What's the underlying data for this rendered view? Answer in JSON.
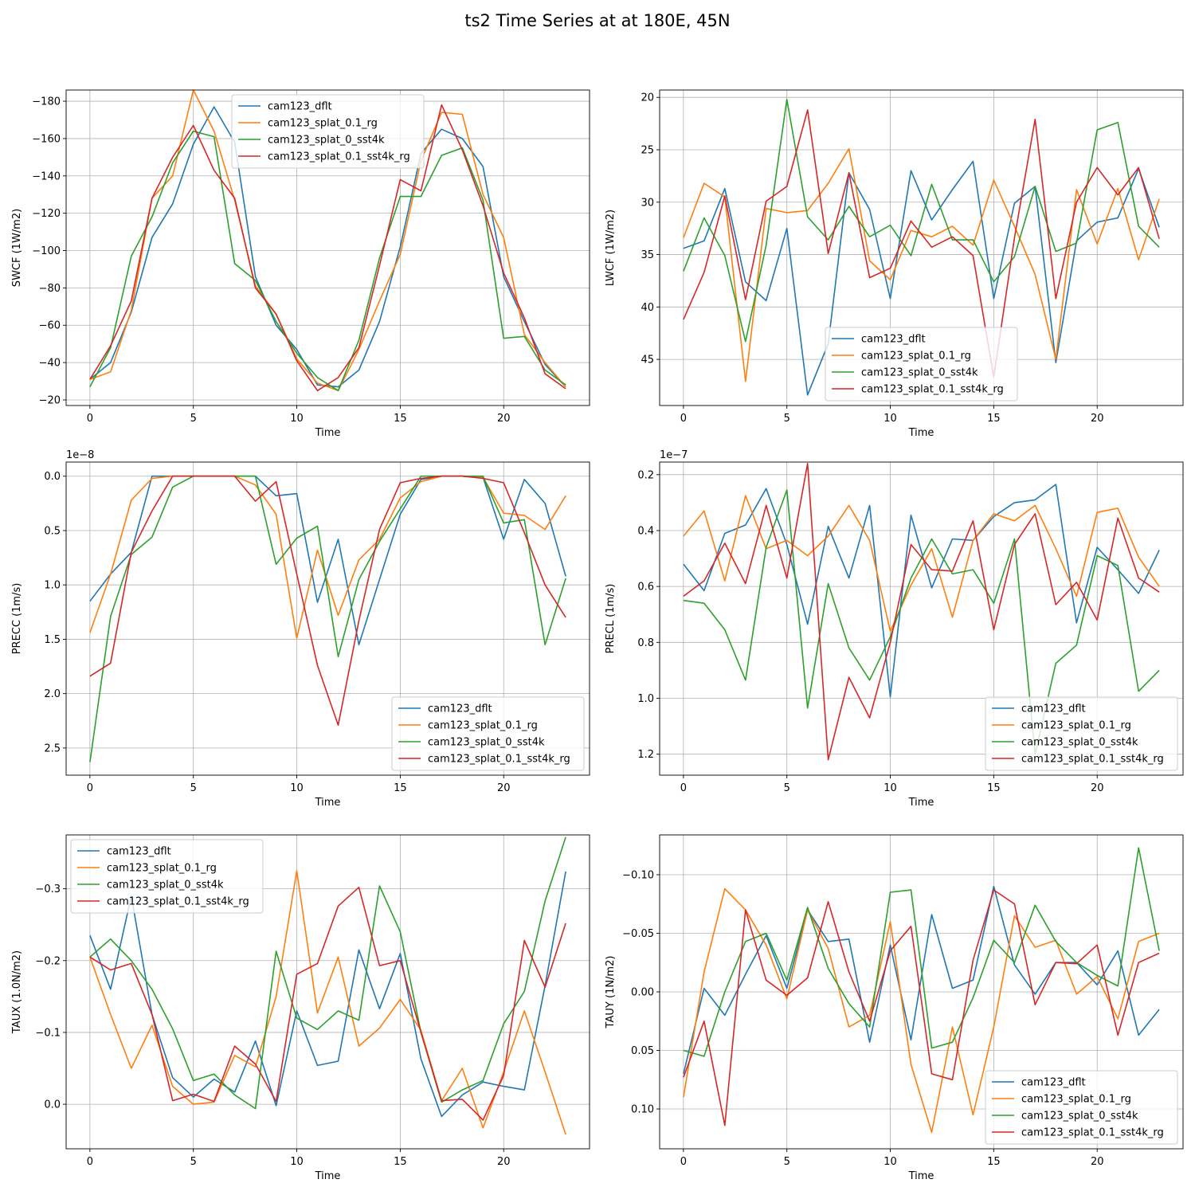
{
  "title": "ts2 Time Series at at 180E, 45N",
  "colors": {
    "cam123_dflt": "#1f77b4",
    "cam123_splat_0.1_rg": "#ff7f0e",
    "cam123_splat_0_sst4k": "#2ca02c",
    "cam123_splat_0.1_sst4k_rg": "#d62728"
  },
  "chart_data": [
    {
      "type": "line",
      "title": "",
      "xlabel": "Time",
      "ylabel": "SWCF (1W/m2)",
      "xlim": [
        -1.15,
        24.15
      ],
      "ylim": [
        -186,
        -17
      ],
      "y_inverted": true,
      "xticks": [
        0,
        5,
        10,
        15,
        20
      ],
      "xtick_labels": [
        "0",
        "5",
        "10",
        "15",
        "20"
      ],
      "yticks": [
        -180,
        -160,
        -140,
        -120,
        -100,
        -80,
        -60,
        -40,
        -20
      ],
      "ytick_labels": [
        "−180",
        "−160",
        "−140",
        "−120",
        "−100",
        "−80",
        "−60",
        "−40",
        "−20"
      ],
      "offset_label": "",
      "legend": "upper center",
      "x": [
        0,
        1,
        2,
        3,
        4,
        5,
        6,
        7,
        8,
        9,
        10,
        11,
        12,
        13,
        14,
        15,
        16,
        17,
        18,
        19,
        20,
        21,
        22,
        23
      ],
      "series": [
        {
          "name": "cam123_dflt",
          "values": [
            -31,
            -40,
            -67,
            -107,
            -125,
            -157,
            -177,
            -158,
            -86,
            -60,
            -47,
            -28,
            -27,
            -36,
            -62,
            -102,
            -152,
            -165,
            -160,
            -145,
            -86,
            -62,
            -39,
            -27
          ]
        },
        {
          "name": "cam123_splat_0.1_rg",
          "values": [
            -31,
            -35,
            -68,
            -128,
            -140,
            -186,
            -164,
            -127,
            -81,
            -66,
            -42,
            -29,
            -25,
            -47,
            -73,
            -98,
            -148,
            -174,
            -173,
            -130,
            -107,
            -55,
            -40,
            -27
          ]
        },
        {
          "name": "cam123_splat_0_sst4k",
          "values": [
            -27,
            -48,
            -97,
            -118,
            -147,
            -164,
            -161,
            -93,
            -84,
            -62,
            -45,
            -32,
            -25,
            -52,
            -96,
            -129,
            -129,
            -151,
            -155,
            -127,
            -53,
            -54,
            -36,
            -28
          ]
        },
        {
          "name": "cam123_splat_0.1_sst4k_rg",
          "values": [
            -31,
            -49,
            -73,
            -128,
            -150,
            -167,
            -143,
            -128,
            -80,
            -66,
            -41,
            -25,
            -32,
            -48,
            -92,
            -138,
            -132,
            -178,
            -154,
            -124,
            -88,
            -64,
            -34,
            -26
          ]
        }
      ]
    },
    {
      "type": "line",
      "title": "",
      "xlabel": "Time",
      "ylabel": "LWCF (1W/m2)",
      "xlim": [
        -1.15,
        24.15
      ],
      "ylim": [
        19.3,
        49.4
      ],
      "y_inverted": true,
      "xticks": [
        0,
        5,
        10,
        15,
        20
      ],
      "xtick_labels": [
        "0",
        "5",
        "10",
        "15",
        "20"
      ],
      "yticks": [
        20,
        25,
        30,
        35,
        40,
        45
      ],
      "ytick_labels": [
        "20",
        "25",
        "30",
        "35",
        "40",
        "45"
      ],
      "offset_label": "",
      "legend": "lower center",
      "x": [
        0,
        1,
        2,
        3,
        4,
        5,
        6,
        7,
        8,
        9,
        10,
        11,
        12,
        13,
        14,
        15,
        16,
        17,
        18,
        19,
        20,
        21,
        22,
        23
      ],
      "series": [
        {
          "name": "cam123_dflt",
          "values": [
            34.4,
            33.7,
            28.7,
            37.6,
            39.4,
            32.5,
            48.4,
            43.5,
            27.2,
            30.7,
            39.2,
            27,
            31.7,
            28.8,
            26.1,
            39.2,
            30.1,
            28.5,
            45.3,
            33.7,
            31.9,
            31.5,
            26.8,
            32.4
          ]
        },
        {
          "name": "cam123_splat_0.1_rg",
          "values": [
            33.4,
            28.2,
            29.5,
            47.1,
            30.6,
            31,
            30.8,
            28.2,
            24.9,
            35.6,
            37.4,
            32.7,
            33.3,
            32.3,
            34.1,
            27.9,
            32.3,
            36.9,
            45,
            28.8,
            34,
            28.7,
            35.5,
            29.7
          ]
        },
        {
          "name": "cam123_splat_0_sst4k",
          "values": [
            36.6,
            31.5,
            35.1,
            43.3,
            34.1,
            20.2,
            31.4,
            33.6,
            30.4,
            33.3,
            32.2,
            35.1,
            28.3,
            33.6,
            33.6,
            37.6,
            35.2,
            28.5,
            34.7,
            33.9,
            23.1,
            22.4,
            32.3,
            34.3
          ]
        },
        {
          "name": "cam123_splat_0.1_sst4k_rg",
          "values": [
            41.2,
            36.7,
            29.4,
            39.3,
            29.9,
            28.5,
            21.2,
            34.9,
            27.2,
            37.2,
            36.3,
            31.8,
            34.3,
            33.3,
            35.1,
            46.7,
            33.4,
            22.1,
            39.2,
            30,
            26.7,
            29.3,
            26.7,
            33.5
          ]
        }
      ]
    },
    {
      "type": "line",
      "title": "",
      "xlabel": "Time",
      "ylabel": "PRECC (1m/s)",
      "xlim": [
        -1.15,
        24.15
      ],
      "ylim": [
        -0.13,
        2.75
      ],
      "y_inverted": true,
      "xticks": [
        0,
        5,
        10,
        15,
        20
      ],
      "xtick_labels": [
        "0",
        "5",
        "10",
        "15",
        "20"
      ],
      "yticks": [
        0,
        0.5,
        1,
        1.5,
        2,
        2.5
      ],
      "ytick_labels": [
        "0.0",
        "0.5",
        "1.0",
        "1.5",
        "2.0",
        "2.5"
      ],
      "offset_label": "1e−8",
      "legend": "lower right",
      "x": [
        0,
        1,
        2,
        3,
        4,
        5,
        6,
        7,
        8,
        9,
        10,
        11,
        12,
        13,
        14,
        15,
        16,
        17,
        18,
        19,
        20,
        21,
        22,
        23
      ],
      "series": [
        {
          "name": "cam123_dflt",
          "values": [
            1.15,
            0.9,
            0.7,
            0,
            0,
            0,
            0,
            0,
            0,
            0.18,
            0.16,
            1.16,
            0.58,
            1.55,
            0.95,
            0.35,
            0.03,
            0,
            0,
            0.01,
            0.58,
            0.03,
            0.25,
            0.92
          ]
        },
        {
          "name": "cam123_splat_0.1_rg",
          "values": [
            1.44,
            0.9,
            0.22,
            0.02,
            0,
            0,
            0,
            0,
            0.08,
            0.35,
            1.49,
            0.68,
            1.28,
            0.77,
            0.58,
            0.2,
            0.05,
            0,
            0,
            0.01,
            0.34,
            0.36,
            0.49,
            0.18
          ]
        },
        {
          "name": "cam123_splat_0_sst4k",
          "values": [
            2.63,
            1.29,
            0.72,
            0.56,
            0.1,
            0,
            0,
            0,
            0,
            0.81,
            0.57,
            0.46,
            1.66,
            0.95,
            0.6,
            0.3,
            0,
            0,
            0,
            0,
            0.43,
            0.4,
            1.55,
            0.94
          ]
        },
        {
          "name": "cam123_splat_0.1_sst4k_rg",
          "values": [
            1.84,
            1.72,
            0.7,
            0.32,
            0,
            0,
            0,
            0,
            0.23,
            0.05,
            0.9,
            1.74,
            2.29,
            1.33,
            0.49,
            0.06,
            0.02,
            0,
            0,
            0.02,
            0.06,
            0.52,
            1,
            1.3
          ]
        }
      ]
    },
    {
      "type": "line",
      "title": "",
      "xlabel": "Time",
      "ylabel": "PRECL (1m/s)",
      "xlim": [
        -1.15,
        24.15
      ],
      "ylim": [
        0.155,
        1.275
      ],
      "y_inverted": true,
      "xticks": [
        0,
        5,
        10,
        15,
        20
      ],
      "xtick_labels": [
        "0",
        "5",
        "10",
        "15",
        "20"
      ],
      "yticks": [
        0.2,
        0.4,
        0.6,
        0.8,
        1,
        1.2
      ],
      "ytick_labels": [
        "0.2",
        "0.4",
        "0.6",
        "0.8",
        "1.0",
        "1.2"
      ],
      "offset_label": "1e−7",
      "legend": "lower right",
      "x": [
        0,
        1,
        2,
        3,
        4,
        5,
        6,
        7,
        8,
        9,
        10,
        11,
        12,
        13,
        14,
        15,
        16,
        17,
        18,
        19,
        20,
        21,
        22,
        23
      ],
      "series": [
        {
          "name": "cam123_dflt",
          "values": [
            0.52,
            0.615,
            0.41,
            0.38,
            0.25,
            0.45,
            0.735,
            0.385,
            0.57,
            0.31,
            0.995,
            0.345,
            0.605,
            0.43,
            0.435,
            0.35,
            0.3,
            0.29,
            0.235,
            0.73,
            0.46,
            0.54,
            0.625,
            0.47
          ]
        },
        {
          "name": "cam123_splat_0.1_rg",
          "values": [
            0.42,
            0.33,
            0.58,
            0.275,
            0.465,
            0.435,
            0.49,
            0.42,
            0.31,
            0.435,
            0.76,
            0.595,
            0.465,
            0.71,
            0.435,
            0.34,
            0.365,
            0.31,
            0.465,
            0.635,
            0.335,
            0.32,
            0.495,
            0.6
          ]
        },
        {
          "name": "cam123_splat_0_sst4k",
          "values": [
            0.65,
            0.66,
            0.755,
            0.935,
            0.46,
            0.255,
            1.035,
            0.59,
            0.82,
            0.935,
            0.78,
            0.57,
            0.43,
            0.555,
            0.54,
            0.66,
            0.43,
            1.2,
            0.875,
            0.81,
            0.49,
            0.525,
            0.975,
            0.9
          ]
        },
        {
          "name": "cam123_splat_0.1_sst4k_rg",
          "values": [
            0.635,
            0.58,
            0.445,
            0.59,
            0.31,
            0.57,
            0.16,
            1.22,
            0.925,
            1.07,
            0.8,
            0.45,
            0.54,
            0.545,
            0.365,
            0.755,
            0.45,
            0.34,
            0.665,
            0.585,
            0.72,
            0.355,
            0.57,
            0.62
          ]
        }
      ]
    },
    {
      "type": "line",
      "title": "",
      "xlabel": "Time",
      "ylabel": "TAUX (1.0N/m2)",
      "xlim": [
        -1.15,
        24.15
      ],
      "ylim": [
        -0.375,
        0.062
      ],
      "y_inverted": true,
      "xticks": [
        0,
        5,
        10,
        15,
        20
      ],
      "xtick_labels": [
        "0",
        "5",
        "10",
        "15",
        "20"
      ],
      "yticks": [
        -0.3,
        -0.2,
        -0.1,
        0
      ],
      "ytick_labels": [
        "−0.3",
        "−0.2",
        "−0.1",
        "0.0"
      ],
      "offset_label": "",
      "legend": "upper left",
      "x": [
        0,
        1,
        2,
        3,
        4,
        5,
        6,
        7,
        8,
        9,
        10,
        11,
        12,
        13,
        14,
        15,
        16,
        17,
        18,
        19,
        20,
        21,
        22,
        23
      ],
      "series": [
        {
          "name": "cam123_dflt",
          "values": [
            -0.235,
            -0.16,
            -0.29,
            -0.125,
            -0.037,
            -0.01,
            -0.035,
            -0.017,
            -0.088,
            0.002,
            -0.13,
            -0.054,
            -0.06,
            -0.215,
            -0.133,
            -0.21,
            -0.063,
            0.017,
            -0.013,
            -0.031,
            -0.025,
            -0.02,
            -0.165,
            -0.324
          ]
        },
        {
          "name": "cam123_splat_0.1_rg",
          "values": [
            -0.205,
            -0.125,
            -0.05,
            -0.11,
            -0.025,
            0,
            -0.003,
            -0.068,
            -0.052,
            -0.15,
            -0.325,
            -0.127,
            -0.205,
            -0.081,
            -0.106,
            -0.146,
            -0.103,
            -0.005,
            -0.05,
            0.033,
            -0.045,
            -0.13,
            -0.045,
            0.042
          ]
        },
        {
          "name": "cam123_splat_0_sst4k",
          "values": [
            -0.205,
            -0.23,
            -0.2,
            -0.16,
            -0.105,
            -0.033,
            -0.042,
            -0.013,
            0.006,
            -0.213,
            -0.12,
            -0.104,
            -0.13,
            -0.117,
            -0.304,
            -0.24,
            -0.1,
            -0.003,
            -0.02,
            -0.033,
            -0.112,
            -0.157,
            -0.283,
            -0.372
          ]
        },
        {
          "name": "cam123_splat_0.1_sst4k_rg",
          "values": [
            -0.205,
            -0.187,
            -0.196,
            -0.125,
            -0.005,
            -0.014,
            -0.004,
            -0.081,
            -0.056,
            -0.004,
            -0.181,
            -0.196,
            -0.276,
            -0.302,
            -0.193,
            -0.2,
            -0.1,
            -0.005,
            -0.007,
            0.022,
            -0.04,
            -0.228,
            -0.163,
            -0.252
          ]
        }
      ]
    },
    {
      "type": "line",
      "title": "",
      "xlabel": "Time",
      "ylabel": "TAUY (1N/m2)",
      "xlim": [
        -1.15,
        24.15
      ],
      "ylim": [
        -0.134,
        0.134
      ],
      "y_inverted": true,
      "xticks": [
        0,
        5,
        10,
        15,
        20
      ],
      "xtick_labels": [
        "0",
        "5",
        "10",
        "15",
        "20"
      ],
      "yticks": [
        -0.1,
        -0.05,
        0,
        0.05,
        0.1
      ],
      "ytick_labels": [
        "−0.10",
        "−0.05",
        "0.00",
        "0.05",
        "0.10"
      ],
      "offset_label": "",
      "legend": "lower right",
      "x": [
        0,
        1,
        2,
        3,
        4,
        5,
        6,
        7,
        8,
        9,
        10,
        11,
        12,
        13,
        14,
        15,
        16,
        17,
        18,
        19,
        20,
        21,
        22,
        23
      ],
      "series": [
        {
          "name": "cam123_dflt",
          "values": [
            0.07,
            -0.003,
            0.02,
            -0.015,
            -0.048,
            -0.003,
            -0.07,
            -0.043,
            -0.045,
            0.043,
            -0.04,
            0.041,
            -0.066,
            -0.003,
            -0.01,
            -0.09,
            -0.023,
            0.002,
            -0.025,
            -0.025,
            -0.006,
            -0.035,
            0.037,
            0.015
          ]
        },
        {
          "name": "cam123_splat_0.1_rg",
          "values": [
            0.09,
            -0.017,
            -0.088,
            -0.07,
            -0.04,
            0.006,
            -0.07,
            -0.037,
            0.03,
            0.02,
            -0.06,
            0.062,
            0.12,
            0.03,
            0.105,
            0.03,
            -0.065,
            -0.038,
            -0.044,
            0.002,
            -0.013,
            0.023,
            -0.043,
            -0.05
          ]
        },
        {
          "name": "cam123_splat_0_sst4k",
          "values": [
            0.05,
            0.055,
            0,
            -0.043,
            -0.05,
            -0.01,
            -0.072,
            -0.02,
            0.01,
            0.03,
            -0.085,
            -0.087,
            0.048,
            0.043,
            0.005,
            -0.044,
            -0.025,
            -0.074,
            -0.043,
            -0.025,
            -0.014,
            -0.005,
            -0.123,
            -0.035
          ]
        },
        {
          "name": "cam123_splat_0.1_sst4k_rg",
          "values": [
            0.073,
            0.025,
            0.114,
            -0.07,
            -0.01,
            0.003,
            -0.012,
            -0.077,
            -0.017,
            0.025,
            -0.035,
            -0.056,
            0.07,
            0.075,
            -0.027,
            -0.087,
            -0.075,
            0.011,
            -0.025,
            -0.024,
            -0.04,
            0.037,
            -0.025,
            -0.033
          ]
        }
      ]
    }
  ]
}
